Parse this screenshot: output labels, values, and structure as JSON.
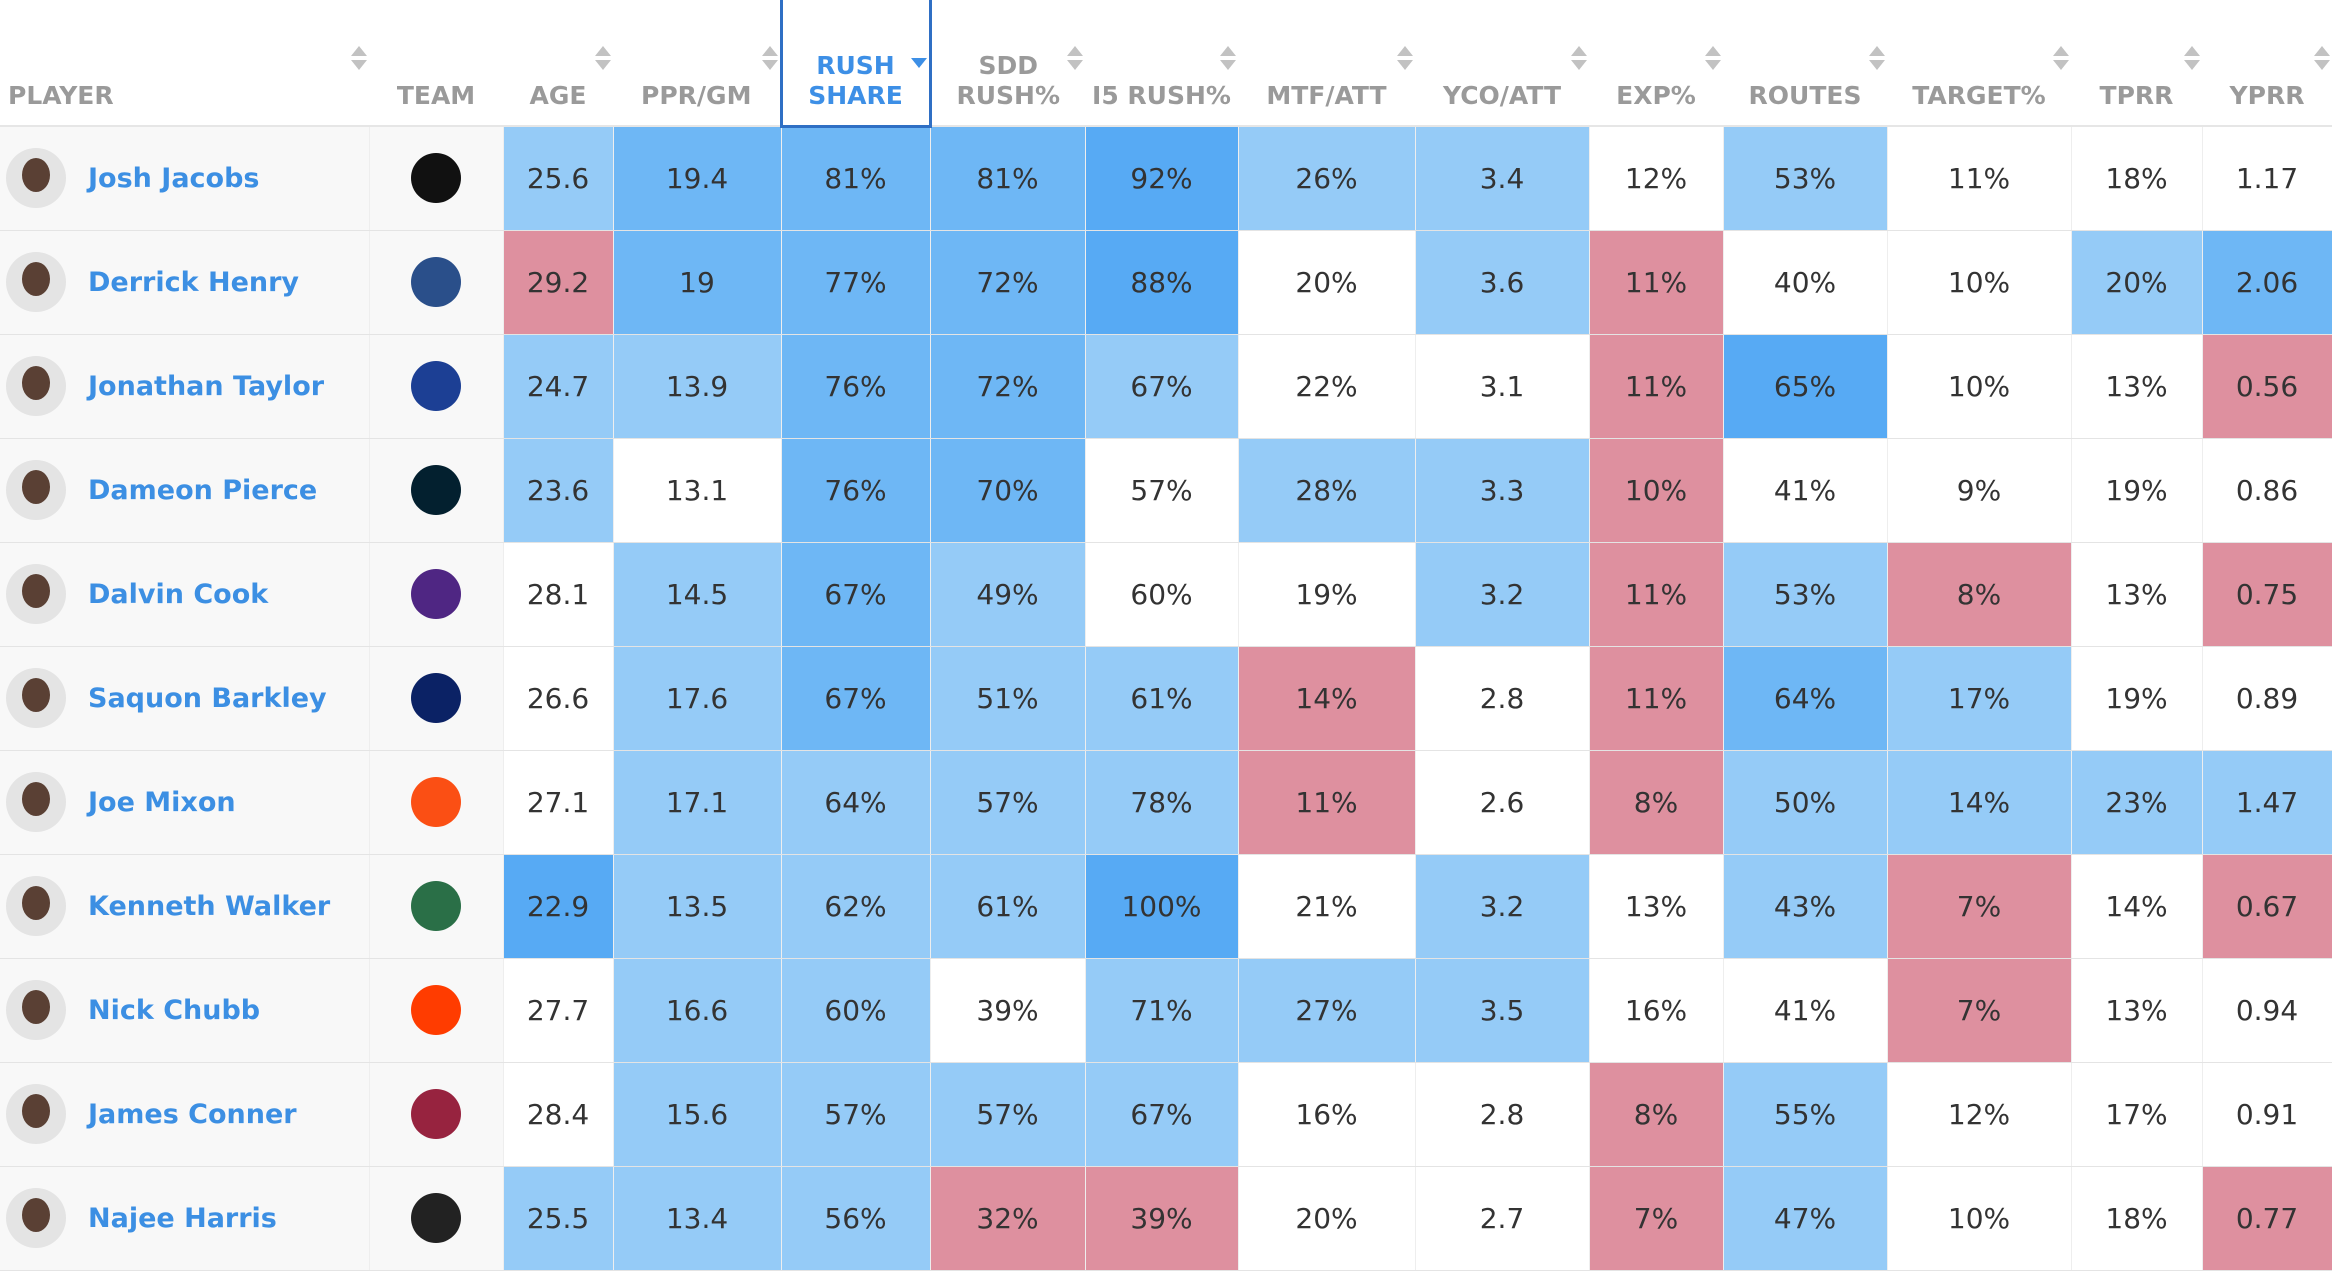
{
  "table": {
    "columns": [
      "PLAYER",
      "TEAM",
      "AGE",
      "PPR/GM",
      "RUSH SHARE",
      "SDD RUSH%",
      "I5 RUSH%",
      "MTF/ATT",
      "YCO/ATT",
      "EXP%",
      "ROUTES",
      "TARGET%",
      "TPRR",
      "YPRR"
    ],
    "rows": [
      {
        "player": "Josh Jacobs",
        "cells": [
          "25.6",
          "19.4",
          "81%",
          "81%",
          "92%",
          "26%",
          "3.4",
          "12%",
          "53%",
          "11%",
          "18%",
          "1.17"
        ],
        "colors": [
          "#95cbf7",
          "#6eb7f5",
          "#6eb7f5",
          "#6eb7f5",
          "#57aaf4",
          "#95cbf7",
          "#95cbf7",
          "#ffffff",
          "#95cbf7",
          "#ffffff",
          "#ffffff",
          "#ffffff"
        ]
      },
      {
        "player": "Derrick Henry",
        "cells": [
          "29.2",
          "19",
          "77%",
          "72%",
          "88%",
          "20%",
          "3.6",
          "11%",
          "40%",
          "10%",
          "20%",
          "2.06"
        ],
        "colors": [
          "#de909f",
          "#6eb7f5",
          "#6eb7f5",
          "#6eb7f5",
          "#57aaf4",
          "#ffffff",
          "#95cbf7",
          "#de909f",
          "#ffffff",
          "#ffffff",
          "#95cbf7",
          "#6eb7f5"
        ]
      },
      {
        "player": "Jonathan Taylor",
        "cells": [
          "24.7",
          "13.9",
          "76%",
          "72%",
          "67%",
          "22%",
          "3.1",
          "11%",
          "65%",
          "10%",
          "13%",
          "0.56"
        ],
        "colors": [
          "#95cbf7",
          "#95cbf7",
          "#6eb7f5",
          "#6eb7f5",
          "#95cbf7",
          "#ffffff",
          "#ffffff",
          "#de909f",
          "#57aaf4",
          "#ffffff",
          "#ffffff",
          "#de909f"
        ]
      },
      {
        "player": "Dameon Pierce",
        "cells": [
          "23.6",
          "13.1",
          "76%",
          "70%",
          "57%",
          "28%",
          "3.3",
          "10%",
          "41%",
          "9%",
          "19%",
          "0.86"
        ],
        "colors": [
          "#95cbf7",
          "#ffffff",
          "#6eb7f5",
          "#6eb7f5",
          "#ffffff",
          "#95cbf7",
          "#95cbf7",
          "#de909f",
          "#ffffff",
          "#ffffff",
          "#ffffff",
          "#ffffff"
        ]
      },
      {
        "player": "Dalvin Cook",
        "cells": [
          "28.1",
          "14.5",
          "67%",
          "49%",
          "60%",
          "19%",
          "3.2",
          "11%",
          "53%",
          "8%",
          "13%",
          "0.75"
        ],
        "colors": [
          "#ffffff",
          "#95cbf7",
          "#6eb7f5",
          "#95cbf7",
          "#ffffff",
          "#ffffff",
          "#95cbf7",
          "#de909f",
          "#95cbf7",
          "#de909f",
          "#ffffff",
          "#de909f"
        ]
      },
      {
        "player": "Saquon Barkley",
        "cells": [
          "26.6",
          "17.6",
          "67%",
          "51%",
          "61%",
          "14%",
          "2.8",
          "11%",
          "64%",
          "17%",
          "19%",
          "0.89"
        ],
        "colors": [
          "#ffffff",
          "#95cbf7",
          "#6eb7f5",
          "#95cbf7",
          "#95cbf7",
          "#de909f",
          "#ffffff",
          "#de909f",
          "#6eb7f5",
          "#95cbf7",
          "#ffffff",
          "#ffffff"
        ]
      },
      {
        "player": "Joe Mixon",
        "cells": [
          "27.1",
          "17.1",
          "64%",
          "57%",
          "78%",
          "11%",
          "2.6",
          "8%",
          "50%",
          "14%",
          "23%",
          "1.47"
        ],
        "colors": [
          "#ffffff",
          "#95cbf7",
          "#95cbf7",
          "#95cbf7",
          "#95cbf7",
          "#de909f",
          "#ffffff",
          "#de909f",
          "#95cbf7",
          "#95cbf7",
          "#95cbf7",
          "#95cbf7"
        ]
      },
      {
        "player": "Kenneth Walker",
        "cells": [
          "22.9",
          "13.5",
          "62%",
          "61%",
          "100%",
          "21%",
          "3.2",
          "13%",
          "43%",
          "7%",
          "14%",
          "0.67"
        ],
        "colors": [
          "#57aaf4",
          "#95cbf7",
          "#95cbf7",
          "#95cbf7",
          "#57aaf4",
          "#ffffff",
          "#95cbf7",
          "#ffffff",
          "#95cbf7",
          "#de909f",
          "#ffffff",
          "#de909f"
        ]
      },
      {
        "player": "Nick Chubb",
        "cells": [
          "27.7",
          "16.6",
          "60%",
          "39%",
          "71%",
          "27%",
          "3.5",
          "16%",
          "41%",
          "7%",
          "13%",
          "0.94"
        ],
        "colors": [
          "#ffffff",
          "#95cbf7",
          "#95cbf7",
          "#ffffff",
          "#95cbf7",
          "#95cbf7",
          "#95cbf7",
          "#ffffff",
          "#ffffff",
          "#de909f",
          "#ffffff",
          "#ffffff"
        ]
      },
      {
        "player": "James Conner",
        "cells": [
          "28.4",
          "15.6",
          "57%",
          "57%",
          "67%",
          "16%",
          "2.8",
          "8%",
          "55%",
          "12%",
          "17%",
          "0.91"
        ],
        "colors": [
          "#ffffff",
          "#95cbf7",
          "#95cbf7",
          "#95cbf7",
          "#95cbf7",
          "#ffffff",
          "#ffffff",
          "#de909f",
          "#95cbf7",
          "#ffffff",
          "#ffffff",
          "#ffffff"
        ]
      },
      {
        "player": "Najee Harris",
        "cells": [
          "25.5",
          "13.4",
          "56%",
          "32%",
          "39%",
          "20%",
          "2.7",
          "7%",
          "47%",
          "10%",
          "18%",
          "0.77"
        ],
        "colors": [
          "#95cbf7",
          "#95cbf7",
          "#95cbf7",
          "#de909f",
          "#de909f",
          "#ffffff",
          "#ffffff",
          "#de909f",
          "#95cbf7",
          "#ffffff",
          "#ffffff",
          "#de909f"
        ]
      }
    ]
  }
}
